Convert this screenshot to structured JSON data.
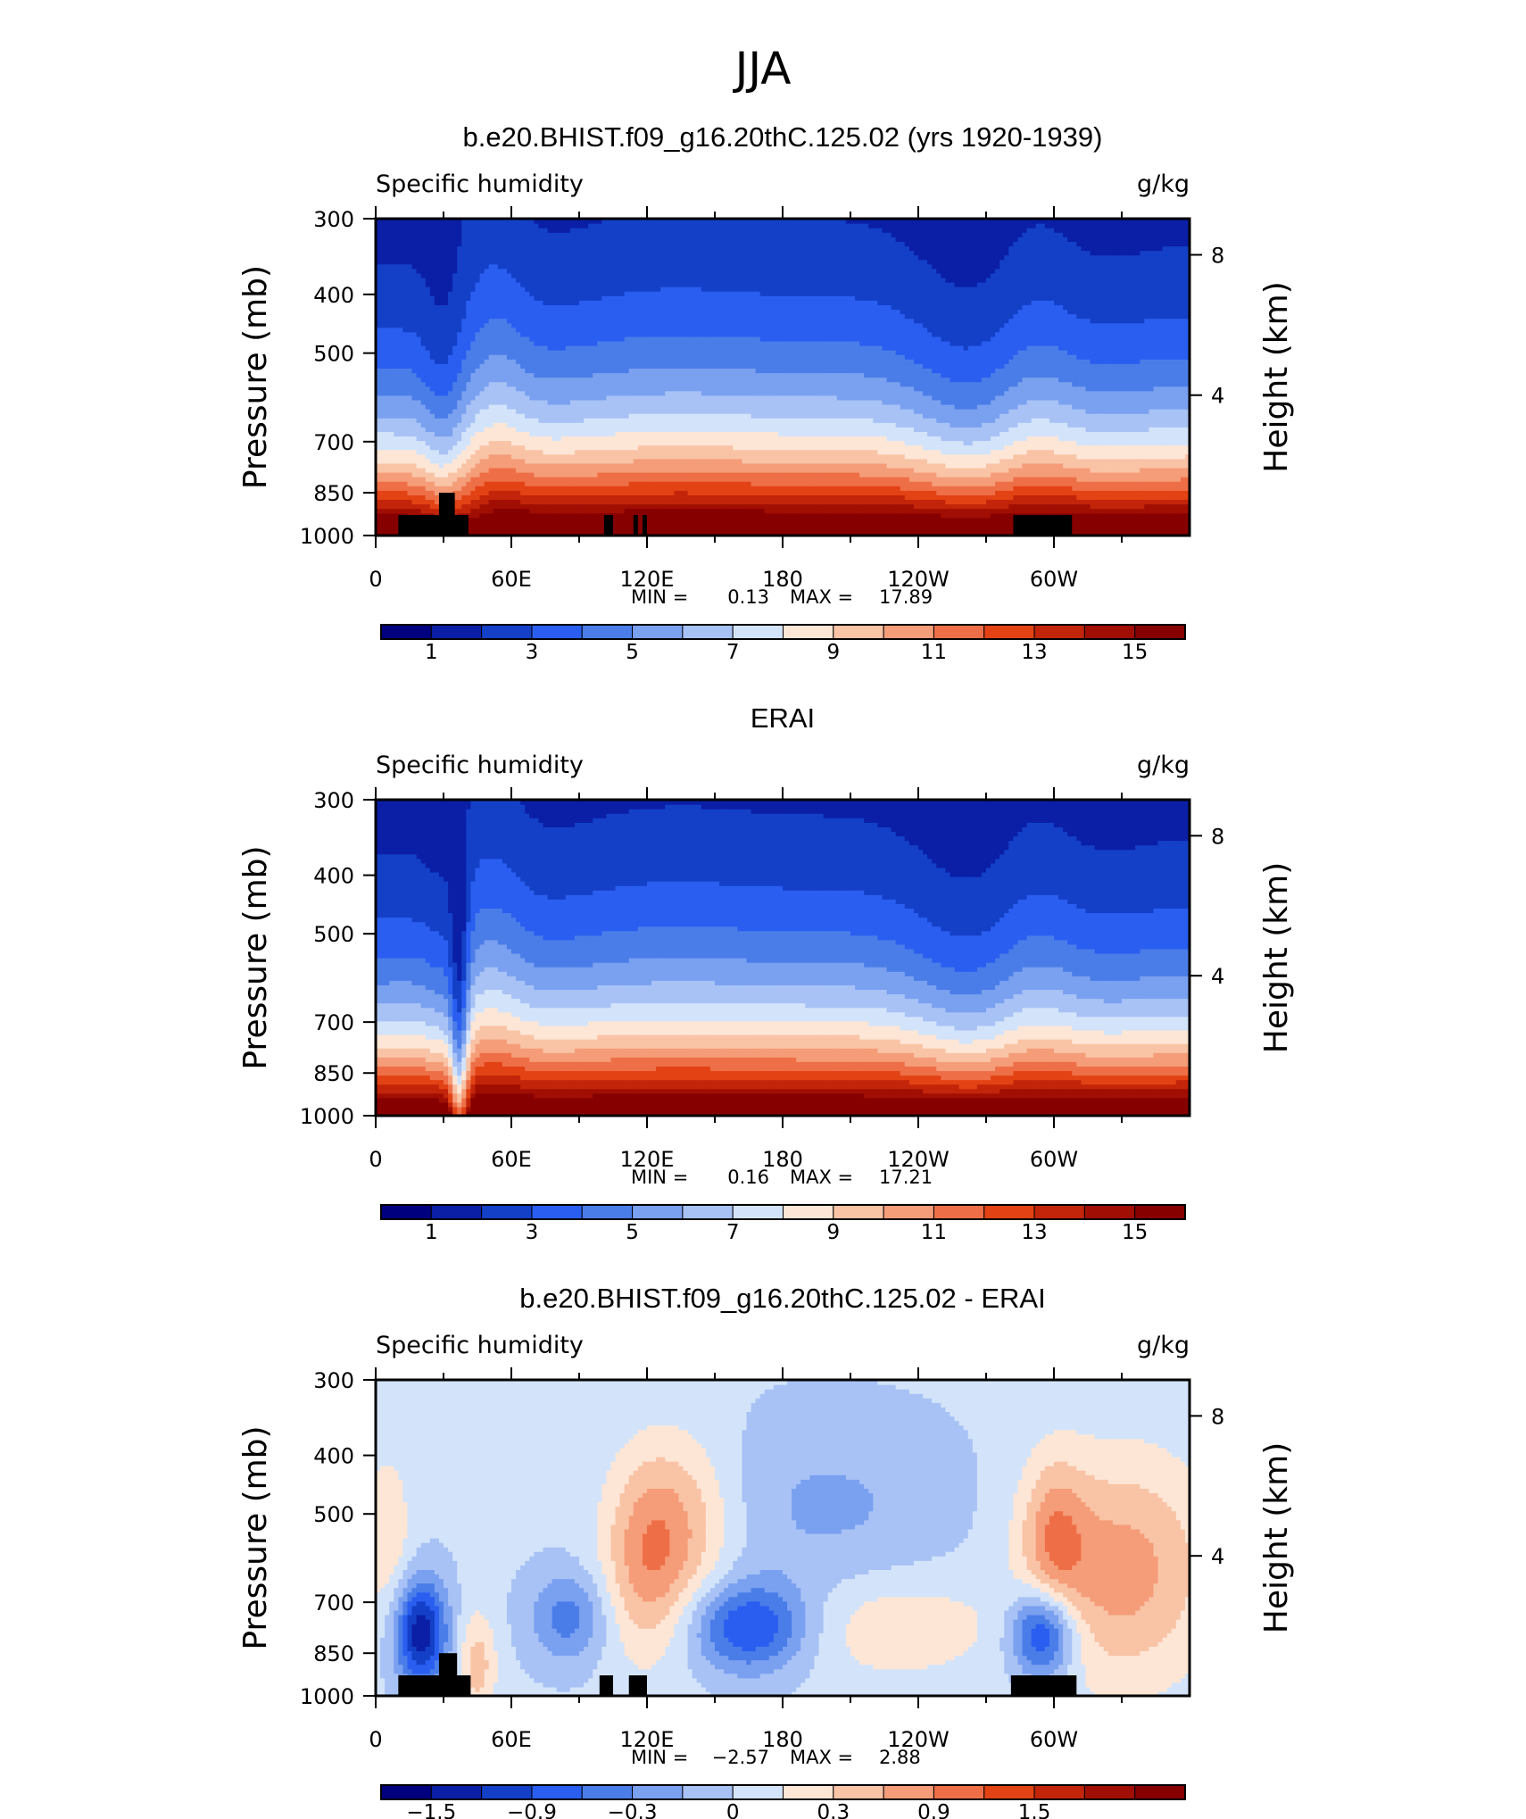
{
  "figure": {
    "title": "JJA"
  },
  "colors": {
    "diverging_scale": [
      "#00007f",
      "#0a1fa6",
      "#1440c8",
      "#2a5ef0",
      "#4a7de8",
      "#7aa0f0",
      "#a8c2f5",
      "#d3e4fa",
      "#fde6d6",
      "#f9c3a6",
      "#f59c78",
      "#ee6f47",
      "#e34214",
      "#c2250a",
      "#a10e03",
      "#870000"
    ]
  },
  "chart_data": [
    {
      "type": "heatmap",
      "panel_title": "b.e20.BHIST.f09_g16.20thC.125.02 (yrs 1920-1939)",
      "left_label": "Specific humidity",
      "right_label": "g/kg",
      "ylabel": "Pressure (mb)",
      "ylabel_right": "Height (km)",
      "x_ticks": [
        "0",
        "60E",
        "120E",
        "180",
        "120W",
        "60W"
      ],
      "y_ticks": [
        "300",
        "400",
        "500",
        "700",
        "850",
        "1000"
      ],
      "y_ticks_right": [
        "8",
        "4"
      ],
      "xlim": [
        0,
        360
      ],
      "ylim": [
        1000,
        300
      ],
      "stats": {
        "min_label": "MIN =",
        "min": "0.13",
        "max_label": "MAX =",
        "max": "17.89"
      },
      "colorbar": {
        "levels": [
          0,
          1,
          2,
          3,
          4,
          5,
          6,
          7,
          8,
          9,
          10,
          11,
          12,
          13,
          14,
          15
        ],
        "labels": [
          "1",
          "3",
          "5",
          "7",
          "9",
          "11",
          "13",
          "15"
        ]
      },
      "field": "model",
      "terrain": [
        {
          "lon0": 10,
          "lon1": 41,
          "p": 925
        },
        {
          "lon0": 28,
          "lon1": 35,
          "p": 850
        },
        {
          "lon0": 101,
          "lon1": 105,
          "p": 925
        },
        {
          "lon0": 114,
          "lon1": 116,
          "p": 925
        },
        {
          "lon0": 118,
          "lon1": 120,
          "p": 925
        },
        {
          "lon0": 282,
          "lon1": 308,
          "p": 925
        }
      ]
    },
    {
      "type": "heatmap",
      "panel_title": "ERAI",
      "left_label": "Specific humidity",
      "right_label": "g/kg",
      "ylabel": "Pressure (mb)",
      "ylabel_right": "Height (km)",
      "x_ticks": [
        "0",
        "60E",
        "120E",
        "180",
        "120W",
        "60W"
      ],
      "y_ticks": [
        "300",
        "400",
        "500",
        "700",
        "850",
        "1000"
      ],
      "y_ticks_right": [
        "8",
        "4"
      ],
      "xlim": [
        0,
        360
      ],
      "ylim": [
        1000,
        300
      ],
      "stats": {
        "min_label": "MIN =",
        "min": "0.16",
        "max_label": "MAX =",
        "max": "17.21"
      },
      "colorbar": {
        "levels": [
          0,
          1,
          2,
          3,
          4,
          5,
          6,
          7,
          8,
          9,
          10,
          11,
          12,
          13,
          14,
          15
        ],
        "labels": [
          "1",
          "3",
          "5",
          "7",
          "9",
          "11",
          "13",
          "15"
        ]
      },
      "field": "obs",
      "terrain": []
    },
    {
      "type": "heatmap",
      "panel_title": "b.e20.BHIST.f09_g16.20thC.125.02 - ERAI",
      "left_label": "Specific humidity",
      "right_label": "g/kg",
      "ylabel": "Pressure (mb)",
      "ylabel_right": "Height (km)",
      "x_ticks": [
        "0",
        "60E",
        "120E",
        "180",
        "120W",
        "60W"
      ],
      "y_ticks": [
        "300",
        "400",
        "500",
        "700",
        "850",
        "1000"
      ],
      "y_ticks_right": [
        "8",
        "4"
      ],
      "xlim": [
        0,
        360
      ],
      "ylim": [
        1000,
        300
      ],
      "stats": {
        "min_label": "MIN =",
        "min": "−2.57",
        "max_label": "MAX =",
        "max": "2.88"
      },
      "colorbar": {
        "levels": [
          -2.1,
          -1.8,
          -1.5,
          -1.2,
          -0.9,
          -0.6,
          -0.3,
          0,
          0.3,
          0.6,
          0.9,
          1.2,
          1.5,
          1.8,
          2.1
        ],
        "labels": [
          "−1.5",
          "−0.9",
          "−0.3",
          "0",
          "0.3",
          "0.9",
          "1.5"
        ]
      },
      "field": "diff",
      "terrain": [
        {
          "lon0": 10,
          "lon1": 42,
          "p": 925
        },
        {
          "lon0": 28,
          "lon1": 36,
          "p": 850
        },
        {
          "lon0": 99,
          "lon1": 105,
          "p": 925
        },
        {
          "lon0": 112,
          "lon1": 120,
          "p": 925
        },
        {
          "lon0": 281,
          "lon1": 310,
          "p": 925
        }
      ]
    }
  ]
}
